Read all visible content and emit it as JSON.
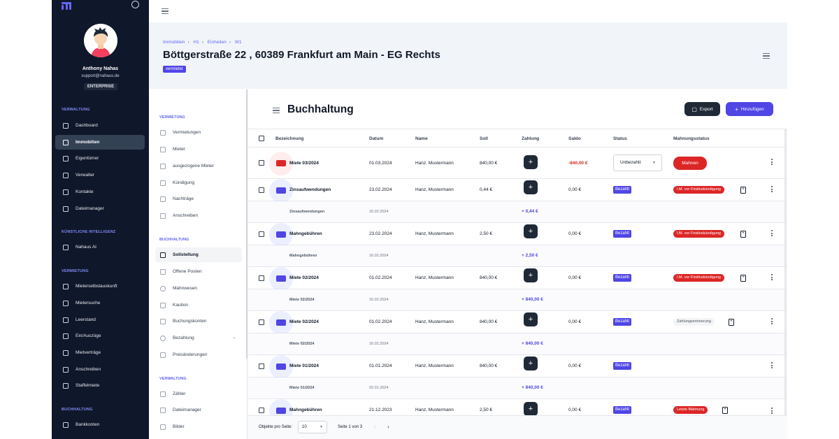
{
  "user": {
    "name": "Anthony Nahas",
    "email": "support@nahaus.de",
    "plan": "ENTERPRISE"
  },
  "sidebar": {
    "sections": [
      {
        "title": "VERWALTUNG",
        "items": [
          {
            "label": "Dashboard",
            "icon": "layout-icon"
          },
          {
            "label": "Immobilien",
            "icon": "building-icon",
            "active": true
          },
          {
            "label": "Eigentümer",
            "icon": "users-icon"
          },
          {
            "label": "Verwalter",
            "icon": "user-group-icon"
          },
          {
            "label": "Kontakte",
            "icon": "contact-icon"
          },
          {
            "label": "Dateimanager",
            "icon": "folder-icon"
          }
        ]
      },
      {
        "title": "KÜNSTLICHE INTELLIGENZ",
        "items": [
          {
            "label": "Nahaus AI",
            "icon": "chip-icon"
          }
        ]
      },
      {
        "title": "VERMIETUNG",
        "items": [
          {
            "label": "Mieterselbstauskunft",
            "icon": "document-icon"
          },
          {
            "label": "Mietersuche",
            "icon": "search-user-icon"
          },
          {
            "label": "Leerstand",
            "icon": "vacancy-icon"
          },
          {
            "label": "Ein/Auszüge",
            "icon": "move-icon"
          },
          {
            "label": "Mietverträge",
            "icon": "contract-icon"
          },
          {
            "label": "Anschreiben",
            "icon": "pen-icon"
          },
          {
            "label": "Staffelmiete",
            "icon": "trend-icon"
          }
        ]
      },
      {
        "title": "BUCHHALTUNG",
        "items": [
          {
            "label": "Bankkonten",
            "icon": "bank-icon"
          }
        ]
      }
    ]
  },
  "header": {
    "breadcrumb": [
      "Immobilien",
      "H1",
      "Einheiten",
      "W1"
    ],
    "title": "Böttgerstraße 22 , 60389 Frankfurt am Main - EG Rechts",
    "badge": "vermietet"
  },
  "subnav": {
    "sections": [
      {
        "title": "VERMIETUNG",
        "items": [
          "Vermietungen",
          "Mieter",
          "ausgezogene Mieter",
          "Kündigung",
          "Nachträge",
          "Anschreiben"
        ]
      },
      {
        "title": "BUCHHALTUNG",
        "items": [
          "Sollstellung",
          "Offene Posten",
          "Mahnwesen",
          "Kaution",
          "Buchungskonten",
          "Bezahlung",
          "Preisänderungen"
        ]
      },
      {
        "title": "VERWALTUNG",
        "items": [
          "Zähler",
          "Dateimanager",
          "Bilder"
        ]
      }
    ],
    "active": "Sollstellung"
  },
  "main": {
    "title": "Buchhaltung",
    "export_label": "Export",
    "add_label": "Hinzufügen",
    "columns": [
      "Bezeichnung",
      "Datum",
      "Name",
      "Soll",
      "Zahlung",
      "Saldo",
      "Status",
      "Mahnungsstatus"
    ],
    "rows": [
      {
        "label": "Miete 03/2024",
        "date": "01.03.2024",
        "name": "Hanz, Mustermann",
        "soll": "840,00 €",
        "saldo": "-840,00 €",
        "status": "Unbezahlt",
        "mahn": "Mahnen",
        "kind": "unpaid"
      },
      {
        "label": "Zinsaufwendungen",
        "date": "23.02.2024",
        "name": "Hanz, Mustermann",
        "soll": "0,44 €",
        "saldo": "0,00 €",
        "status": "Bezahlt",
        "mahn": "I.M. vor Fristloskündigung",
        "kind": "paid-red",
        "sub": {
          "label": "Zinsaufwendungen",
          "date": "16.02.2024",
          "amount": "+ 0,44 €"
        }
      },
      {
        "label": "Mahngebühren",
        "date": "23.02.2024",
        "name": "Hanz, Mustermann",
        "soll": "2,50 €",
        "saldo": "0,00 €",
        "status": "Bezahlt",
        "mahn": "I.M. vor Fristloskündigung",
        "kind": "paid-red",
        "sub": {
          "label": "Mahngebühren",
          "date": "16.02.2024",
          "amount": "+ 2,50 €"
        }
      },
      {
        "label": "Miete 02/2024",
        "date": "01.02.2024",
        "name": "Hanz, Mustermann",
        "soll": "840,00 €",
        "saldo": "0,00 €",
        "status": "Bezahlt",
        "mahn": "I.M. vor Fristloskündigung",
        "kind": "paid-red",
        "sub": {
          "label": "Miete 02/2024",
          "date": "16.02.2024",
          "amount": "+ 840,00 €"
        }
      },
      {
        "label": "Miete 02/2024",
        "date": "01.02.2024",
        "name": "Hanz, Mustermann",
        "soll": "840,00 €",
        "saldo": "0,00 €",
        "status": "Bezahlt",
        "mahn": "Zahlungserinnerung",
        "kind": "paid-gray",
        "sub": {
          "label": "Miete 02/2024",
          "date": "16.02.2024",
          "amount": "+ 840,00 €"
        }
      },
      {
        "label": "Miete 01/2024",
        "date": "01.01.2024",
        "name": "Hanz, Mustermann",
        "soll": "840,00 €",
        "saldo": "0,00 €",
        "status": "Bezahlt",
        "mahn": "",
        "kind": "paid-none",
        "sub": {
          "label": "Miete 01/2024",
          "date": "02.01.2024",
          "amount": "+ 840,00 €"
        }
      },
      {
        "label": "Mahngebühren",
        "date": "21.12.2023",
        "name": "Hanz, Mustermann",
        "soll": "2,50 €",
        "saldo": "0,00 €",
        "status": "Bezahlt",
        "mahn": "Letzte Mahnung",
        "kind": "paid-red"
      }
    ],
    "footer": {
      "per_page_label": "Objekte pro Seite:",
      "per_page": "10",
      "page_info": "Seite 1 von 3"
    }
  },
  "colors": {
    "sidebar": "#0f172a",
    "accent": "#4f46e5",
    "danger": "#dc2626"
  }
}
